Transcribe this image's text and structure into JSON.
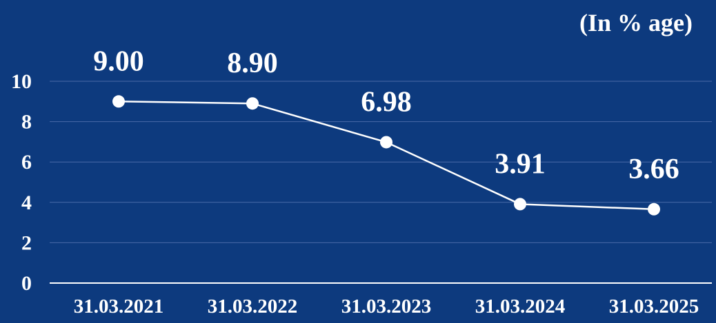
{
  "chart_data": {
    "type": "line",
    "unit_label": "(In % age)",
    "categories": [
      "31.03.2021",
      "31.03.2022",
      "31.03.2023",
      "31.03.2024",
      "31.03.2025"
    ],
    "series": [
      {
        "values": [
          9.0,
          8.9,
          6.98,
          3.91,
          3.66
        ]
      }
    ],
    "data_labels": [
      "9.00",
      "8.90",
      "6.98",
      "3.91",
      "3.66"
    ],
    "yticks": [
      "0",
      "2",
      "4",
      "6",
      "8",
      "10"
    ],
    "ylim": [
      0,
      10
    ],
    "grid": true,
    "legend": "none",
    "colors": {
      "background": "#0d3a7e",
      "line": "#ffffff",
      "grid": "#4a6aa8",
      "text": "#ffffff"
    }
  }
}
